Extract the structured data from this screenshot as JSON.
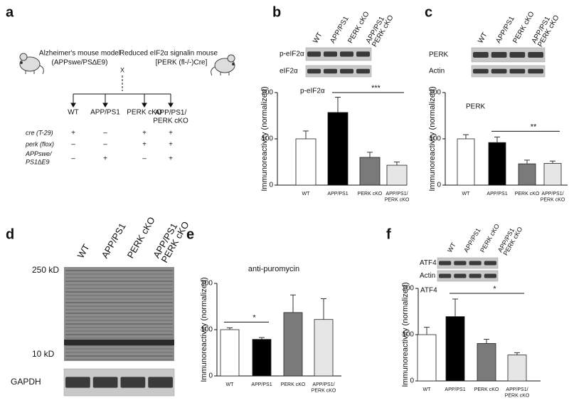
{
  "figure": {
    "panel_letters": [
      "a",
      "b",
      "c",
      "d",
      "e",
      "f"
    ],
    "cross": {
      "left_model": "Alzheimer's mouse model",
      "left_genotype": "(APPswe/PS∆E9)",
      "right_model": "Reduced eIF2α signalin mouse",
      "right_genotype": "[PERK (fl-/-)Cre]",
      "symbol": "X",
      "columns": [
        "WT",
        "APP/PS1",
        "PERK cKO",
        "APP/PS1/\nPERK cKO"
      ],
      "rows": [
        {
          "label": "cre (T-29)",
          "cells": [
            "+",
            "–",
            "+",
            "+"
          ]
        },
        {
          "label": "perk (flox)",
          "cells": [
            "–",
            "–",
            "+",
            "+"
          ]
        },
        {
          "label": "APPswe/\nPS1∆E9",
          "cells": [
            "–",
            "+",
            "–",
            "+"
          ]
        }
      ]
    },
    "blots": [
      {
        "lanes": [
          "WT",
          "APP/PS1",
          "PERK cKO",
          "APP/PS1\nPERK cKO"
        ],
        "bands": [
          "p-eIF2α",
          "eIF2α"
        ]
      },
      {
        "lanes": [
          "WT",
          "APP/PS1",
          "PERK cKO",
          "APP/PS1\nPERK cKO"
        ],
        "bands": [
          "PERK",
          "Actin"
        ]
      },
      {
        "lanes": [
          "WT",
          "APP/PS1",
          "PERK cKO",
          "APP/PS1\nPERK cKO"
        ],
        "markers": [
          "250 kD",
          "10 kD"
        ],
        "bands": [
          "GAPDH"
        ]
      },
      {
        "lanes": [
          "WT",
          "APP/PS1",
          "PERK cKO",
          "APP/PS1\nPERK cKO"
        ],
        "bands": [
          "ATF4",
          "Actin"
        ]
      }
    ]
  },
  "chart_data": [
    {
      "type": "bar",
      "annotation": "p-eIF2α",
      "y_label": "Immunoreactivity (normalized)",
      "categories": [
        "WT",
        "APP/PS1",
        "PERK cKO",
        "APP/PS1/\nPERK cKO"
      ],
      "values": [
        100,
        157,
        60,
        43
      ],
      "errors": [
        17,
        33,
        11,
        7
      ],
      "colors": [
        "#ffffff",
        "#000000",
        "#7a7a7a",
        "#e6e6e6"
      ],
      "ylim": [
        0,
        200
      ],
      "yticks": [
        0,
        100,
        200
      ],
      "significance": {
        "label": "***",
        "from": 1,
        "to": 3
      }
    },
    {
      "type": "bar",
      "annotation": "PERK",
      "y_label": "Immunoreactivity (normalized)",
      "categories": [
        "WT",
        "APP/PS1",
        "PERK cKO",
        "APP/PS1/\nPERK cKO"
      ],
      "values": [
        100,
        92,
        46,
        47
      ],
      "errors": [
        9,
        12,
        8,
        5
      ],
      "colors": [
        "#ffffff",
        "#000000",
        "#7a7a7a",
        "#e6e6e6"
      ],
      "ylim": [
        0,
        200
      ],
      "yticks": [
        0,
        100,
        200
      ],
      "significance": {
        "label": "**",
        "from": 1,
        "to": 3
      }
    },
    {
      "type": "bar",
      "title": "anti-puromycin",
      "y_label": "Immunoreactivity (normalized)",
      "categories": [
        "WT",
        "APP/PS1",
        "PERK cKO",
        "APP/PS1/\nPERK cKO"
      ],
      "values": [
        100,
        79,
        137,
        122
      ],
      "errors": [
        4,
        4,
        38,
        45
      ],
      "colors": [
        "#ffffff",
        "#000000",
        "#7a7a7a",
        "#e6e6e6"
      ],
      "ylim": [
        0,
        200
      ],
      "yticks": [
        0,
        100,
        200
      ],
      "significance": {
        "label": "*",
        "from": 0,
        "to": 1
      }
    },
    {
      "type": "bar",
      "annotation": "ATF4",
      "y_label": "Immunoreactivity (normalized)",
      "categories": [
        "WT",
        "APP/PS1",
        "PERK cKO",
        "APP/PS1/\nPERK cKO"
      ],
      "values": [
        100,
        139,
        81,
        56
      ],
      "errors": [
        16,
        38,
        9,
        5
      ],
      "colors": [
        "#ffffff",
        "#000000",
        "#7a7a7a",
        "#e6e6e6"
      ],
      "ylim": [
        0,
        200
      ],
      "yticks": [
        0,
        100,
        200
      ],
      "significance": {
        "label": "*",
        "from": 1,
        "to": 3
      }
    }
  ]
}
